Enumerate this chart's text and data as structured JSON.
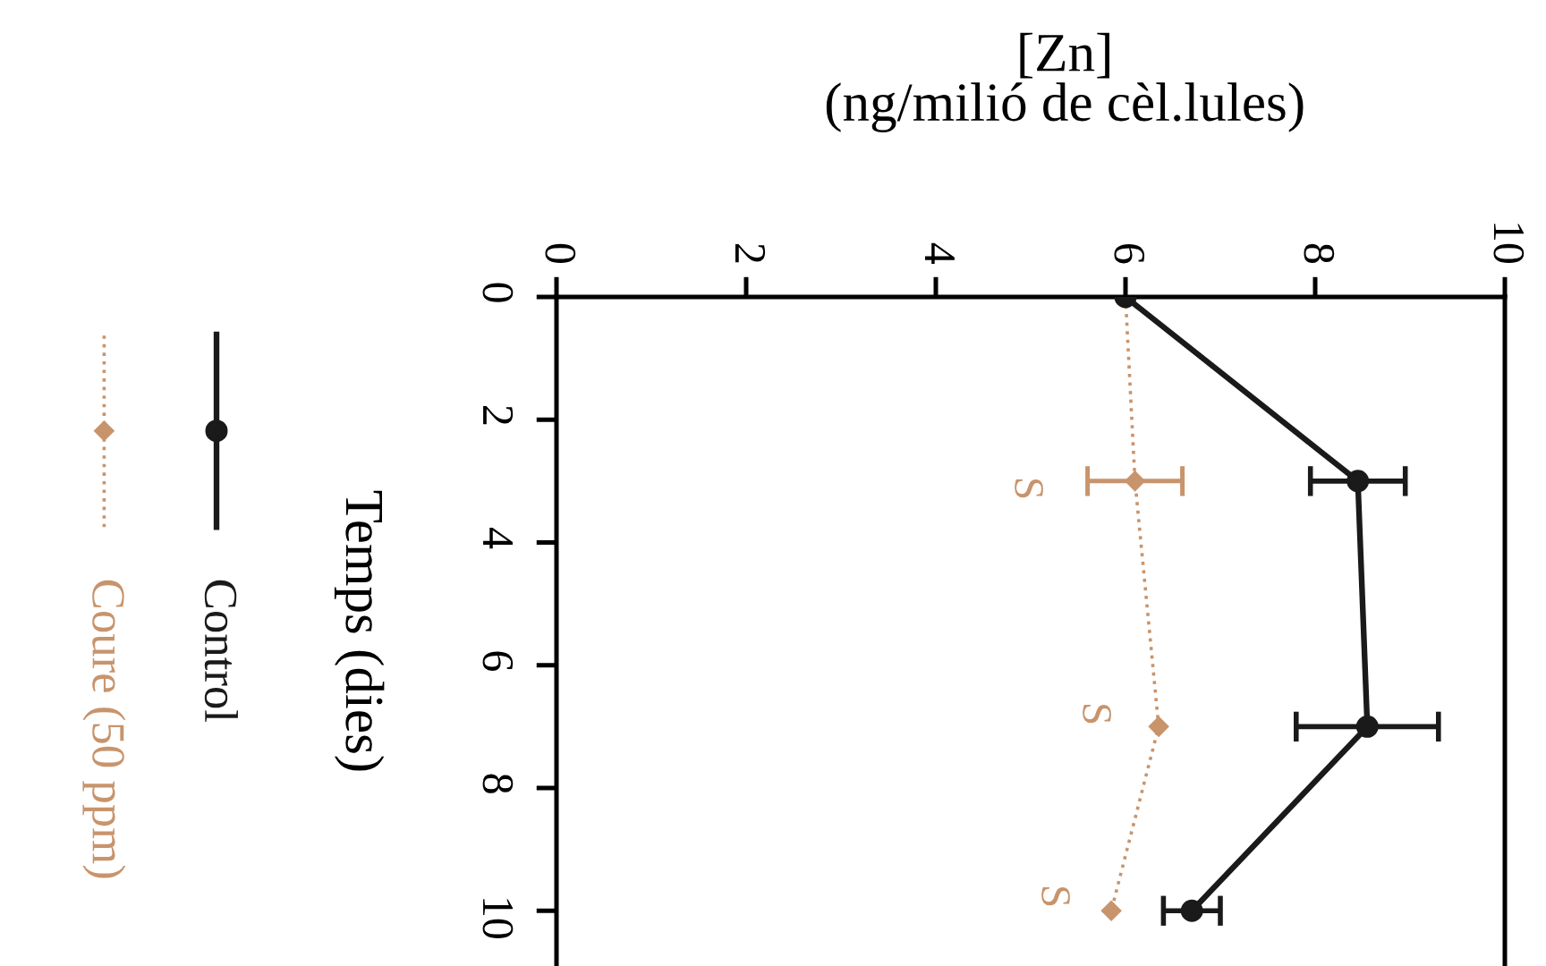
{
  "chart_data": {
    "type": "line",
    "orientation": "horizontal",
    "xlabel": "[Zn]\n(ng/milió de cèl.lules)",
    "ylabel": "Temps (dies)",
    "x": [
      0,
      3,
      7,
      10
    ],
    "xlim": [
      0,
      10
    ],
    "xticks": [
      0,
      2,
      4,
      6,
      8,
      10
    ],
    "ylim": [
      10.9,
      0
    ],
    "yticks": [
      0,
      2,
      4,
      6,
      8,
      10
    ],
    "series": [
      {
        "name": "Control",
        "color": "#1a1a1a",
        "values": [
          6.0,
          8.45,
          8.55,
          6.7
        ],
        "errors": [
          null,
          0.5,
          0.75,
          0.3
        ],
        "marker": "circle",
        "line_style": "solid"
      },
      {
        "name": "Coure (50 ppm)",
        "color": "#c8946c",
        "values": [
          6.0,
          6.1,
          6.35,
          5.85
        ],
        "errors": [
          null,
          0.5,
          null,
          null
        ],
        "marker": "diamond",
        "line_style": "dotted"
      }
    ],
    "annotations": [
      "S",
      "S",
      "S"
    ],
    "legend": "left"
  }
}
